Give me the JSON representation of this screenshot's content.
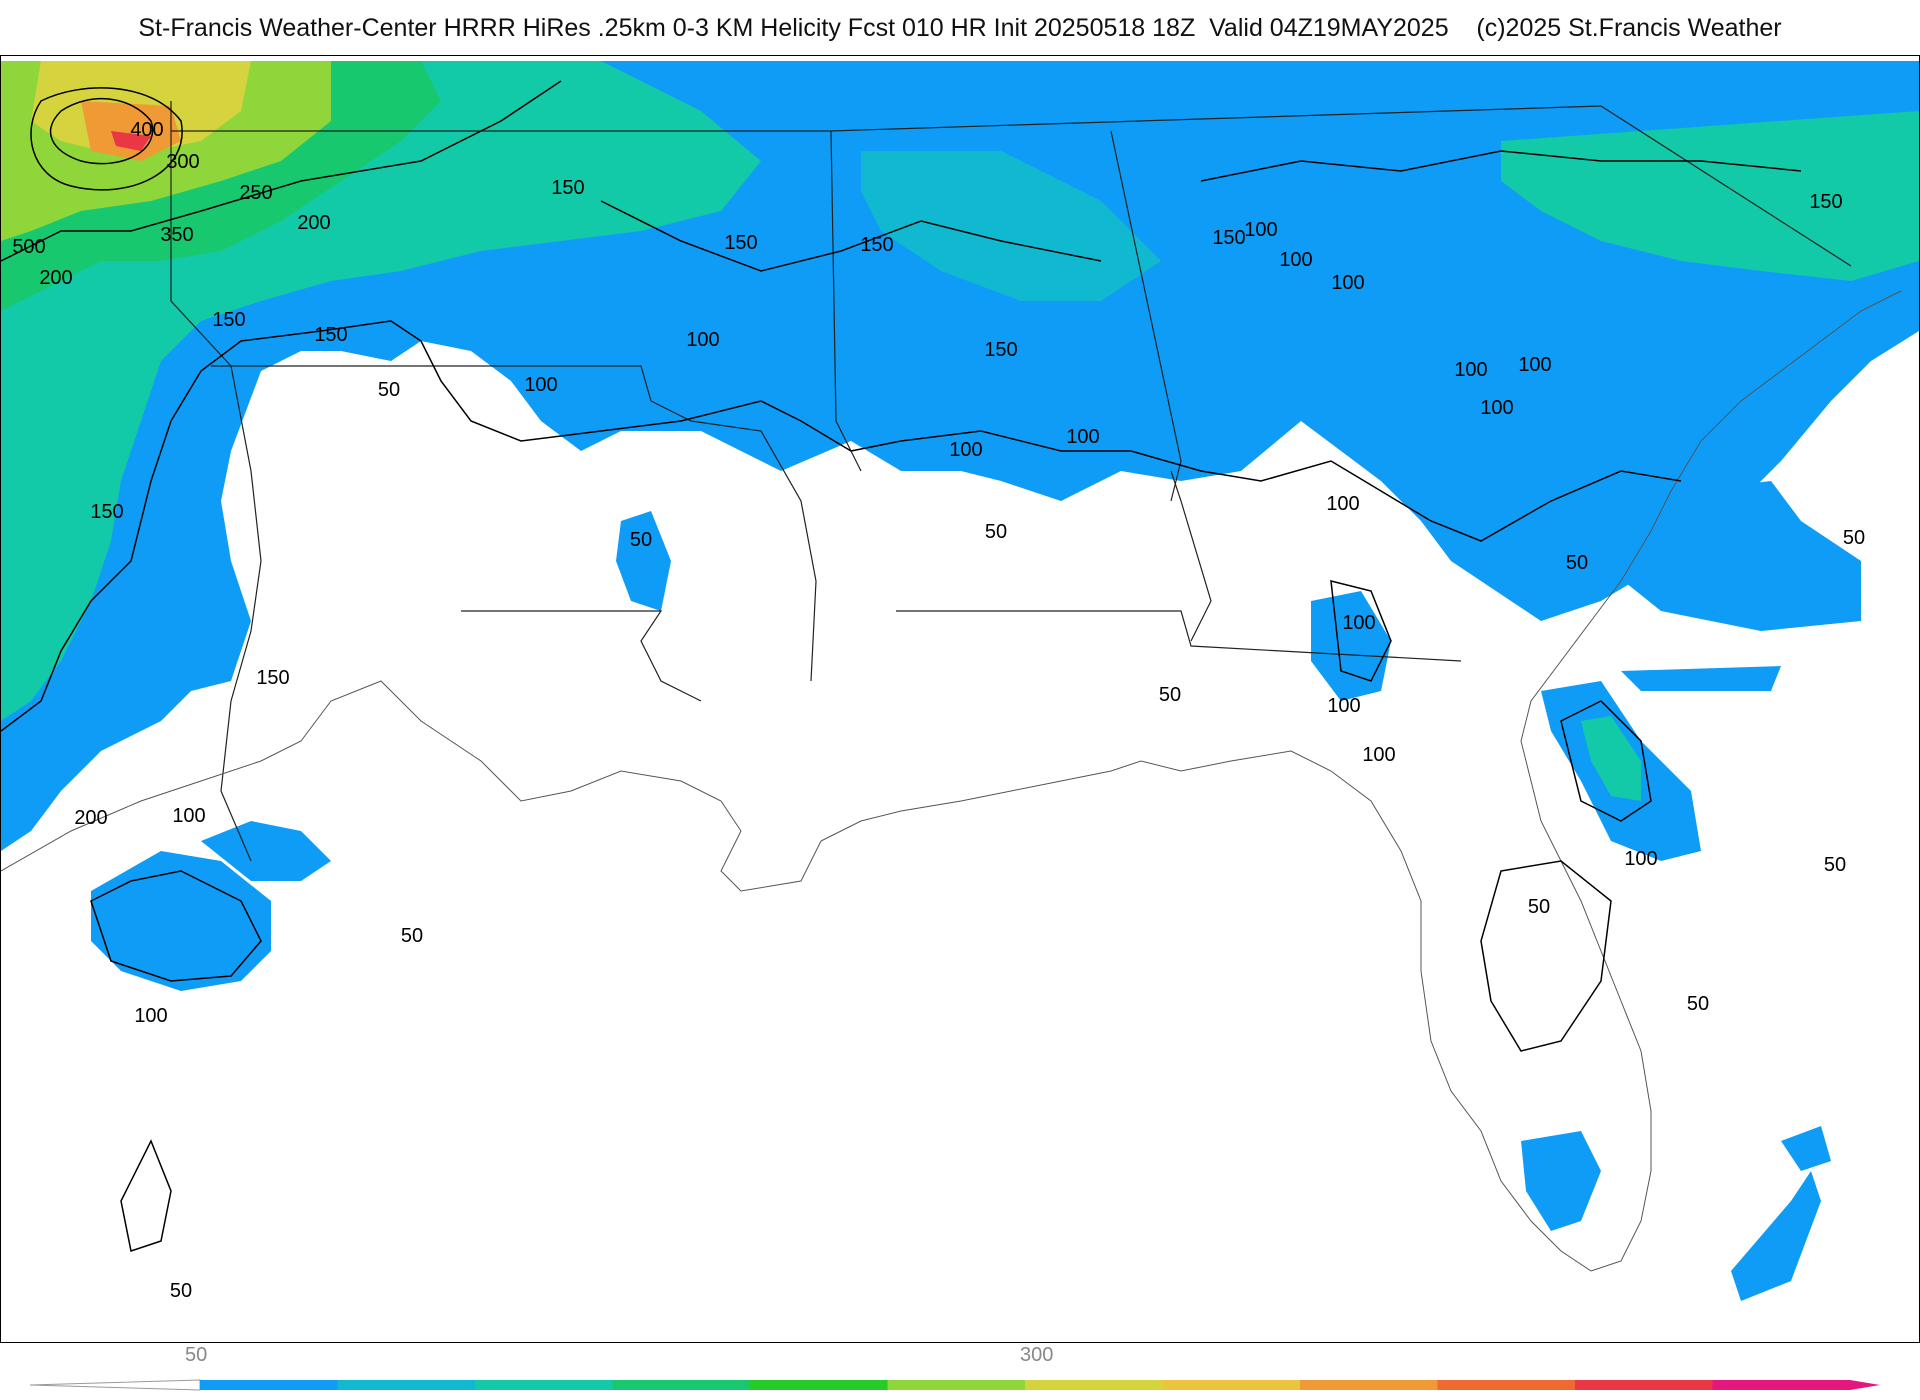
{
  "header": {
    "title": "St-Francis Weather-Center HRRR HiRes .25km 0-3 KM Helicity Fcst 010 HR Init 20250518 18Z  Valid 04Z19MAY2025    (c)2025 St.Francis Weather"
  },
  "legend": {
    "tick_labels": [
      "50",
      "300"
    ],
    "colors": [
      "#0f9cf6",
      "#10b9d0",
      "#12c9a8",
      "#18c86e",
      "#25cc28",
      "#8fd63a",
      "#d6d43e",
      "#e9c43c",
      "#f09a36",
      "#ef6a33",
      "#e93746",
      "#e3177c"
    ]
  },
  "map": {
    "field": "0-3 KM Helicity",
    "contour_labels": [
      {
        "text": "400"
      },
      {
        "text": "300"
      },
      {
        "text": "250"
      },
      {
        "text": "350"
      },
      {
        "text": "200"
      },
      {
        "text": "500"
      },
      {
        "text": "200"
      },
      {
        "text": "150"
      },
      {
        "text": "150"
      },
      {
        "text": "150"
      },
      {
        "text": "150"
      },
      {
        "text": "100"
      },
      {
        "text": "50"
      },
      {
        "text": "150"
      },
      {
        "text": "100"
      },
      {
        "text": "50"
      },
      {
        "text": "150"
      },
      {
        "text": "100"
      },
      {
        "text": "50"
      },
      {
        "text": "100"
      },
      {
        "text": "100"
      },
      {
        "text": "100"
      },
      {
        "text": "100"
      },
      {
        "text": "150"
      },
      {
        "text": "100"
      },
      {
        "text": "100"
      },
      {
        "text": "100"
      },
      {
        "text": "100"
      },
      {
        "text": "100"
      },
      {
        "text": "50"
      },
      {
        "text": "100"
      },
      {
        "text": "100"
      },
      {
        "text": "50"
      },
      {
        "text": "50"
      },
      {
        "text": "100"
      },
      {
        "text": "200"
      },
      {
        "text": "150"
      },
      {
        "text": "100"
      },
      {
        "text": "50"
      },
      {
        "text": "100"
      },
      {
        "text": "50"
      },
      {
        "text": "50"
      },
      {
        "text": "50"
      },
      {
        "text": "50"
      },
      {
        "text": "150"
      },
      {
        "text": "150"
      }
    ]
  }
}
